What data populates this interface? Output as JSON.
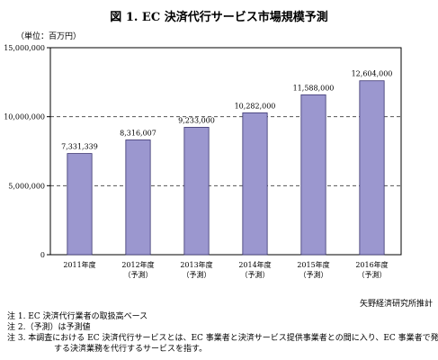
{
  "chart_data": {
    "type": "bar",
    "title": "図 1. EC 決済代行サービス市場規模予測",
    "unit_label": "（単位：百万円）",
    "categories": [
      [
        "2011年度"
      ],
      [
        "2012年度",
        "（予測）"
      ],
      [
        "2013年度",
        "（予測）"
      ],
      [
        "2014年度",
        "（予測）"
      ],
      [
        "2015年度",
        "（予測）"
      ],
      [
        "2016年度",
        "（予測）"
      ]
    ],
    "values": [
      7331339,
      8316007,
      9233000,
      10282000,
      11588000,
      12604000
    ],
    "value_labels": [
      "7,331,339",
      "8,316,007",
      "9,233,000",
      "10,282,000",
      "11,588,000",
      "12,604,000"
    ],
    "yticks": [
      0,
      5000000,
      10000000,
      15000000
    ],
    "ytick_labels": [
      "0",
      "5,000,000",
      "10,000,000",
      "15,000,000"
    ],
    "ylim": [
      0,
      15000000
    ],
    "grid": true,
    "bar_color": "#9b97cf",
    "bar_edge": "#3a3470"
  },
  "source": "矢野経済研究所推計",
  "notes": [
    "注 1. EC 決済代行業者の取扱高ベース",
    "注 2.（予測）は予測値",
    "注 3. 本調査における EC 決済代行サービスとは、EC 事業者と決済サービス提供事業者との間に入り、EC 事業者で発生"
  ],
  "note_continuation": "する決済業務を代行するサービスを指す。"
}
